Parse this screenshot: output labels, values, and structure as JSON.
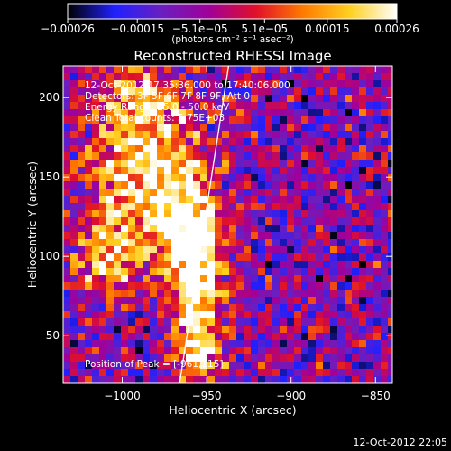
{
  "chart_data": {
    "type": "heatmap",
    "title": "Reconstructed RHESSI Image",
    "xlabel": "Heliocentric X (arcsec)",
    "ylabel": "Heliocentric Y (arcsec)",
    "xlim": [
      -1035,
      -840
    ],
    "ylim": [
      20,
      220
    ],
    "x_ticks": [
      -1000,
      -950,
      -900,
      -850
    ],
    "x_tick_labels": [
      "−1000",
      "−950",
      "−900",
      "−850"
    ],
    "y_ticks": [
      50,
      100,
      150,
      200
    ],
    "y_tick_labels": [
      "50",
      "100",
      "150",
      "200"
    ],
    "colorbar": {
      "range": [
        -0.00026,
        0.00026
      ],
      "ticks": [
        -0.00026,
        -0.00015,
        -5.1e-05,
        5.1e-05,
        0.00015,
        0.00026
      ],
      "tick_labels": [
        "−0.00026",
        "−0.00015",
        "−5.1e−05",
        "5.1e−05",
        "0.00015",
        "0.00026"
      ],
      "colors": [
        "#000000",
        "#2020ff",
        "#6a1fbf",
        "#a0009a",
        "#e0102a",
        "#ff7a00",
        "#ffd020",
        "#ffffff"
      ],
      "units_label": "(photons cm⁻² s⁻¹ asec⁻²)"
    },
    "info_lines": [
      "12-Oct-2012 17:35:36.000 to 17:40:06.000",
      "Detectors: 3F 5F 6F 7F 8F 9F, Att 0",
      "Energy Range: 25.0 - 50.0 keV",
      "Clean     Total counts: 5.75E+03"
    ],
    "peak_annotation": "Position of Peak = [-961,115]",
    "peak_position": [
      -961,
      115
    ],
    "limb_line": [
      [
        -966,
        20
      ],
      [
        -937,
        220
      ]
    ],
    "grid": false,
    "emission_sources": [
      {
        "x": -985,
        "y": 150,
        "sx": 22,
        "sy": 30,
        "amp": 1.0
      },
      {
        "x": -960,
        "y": 112,
        "sx": 12,
        "sy": 22,
        "amp": 1.15
      },
      {
        "x": -955,
        "y": 55,
        "sx": 10,
        "sy": 30,
        "amp": 1.0
      },
      {
        "x": -1010,
        "y": 100,
        "sx": 14,
        "sy": 18,
        "amp": 0.7
      },
      {
        "x": -990,
        "y": 200,
        "sx": 18,
        "sy": 14,
        "amp": 0.6
      }
    ]
  },
  "footer_timestamp": "12-Oct-2012 22:05"
}
